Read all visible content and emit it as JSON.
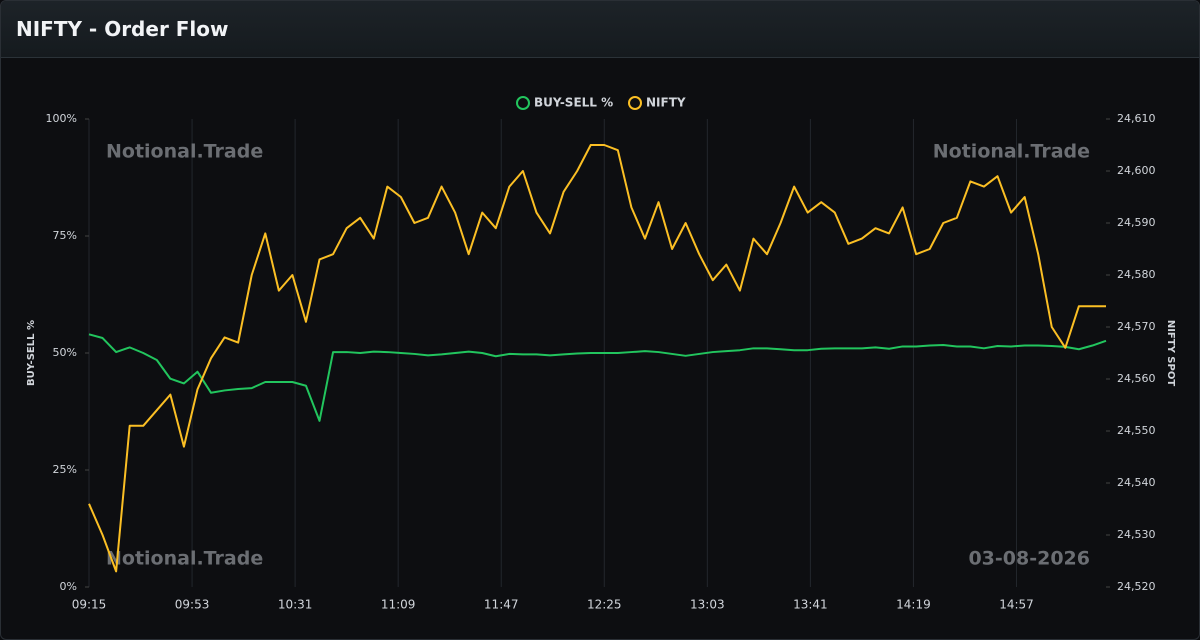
{
  "header": {
    "title": "NIFTY - Order Flow"
  },
  "chart_data": {
    "type": "line",
    "watermarks": [
      "Notional.Trade",
      "Notional.Trade",
      "Notional.Trade"
    ],
    "date_label": "03-08-2026",
    "ylabel": "BUY-SELL %",
    "y2label": "NIFTY SPOT",
    "x": [
      555,
      560,
      565,
      570,
      575,
      580,
      585,
      590,
      595,
      600,
      605,
      610,
      615,
      620,
      625,
      630,
      635,
      640,
      645,
      650,
      655,
      660,
      665,
      670,
      675,
      680,
      685,
      690,
      695,
      700,
      705,
      710,
      715,
      720,
      725,
      730,
      735,
      740,
      745,
      750,
      755,
      760,
      765,
      770,
      775,
      780,
      785,
      790,
      795,
      800,
      805,
      810,
      815,
      820,
      825,
      830,
      835,
      840,
      845,
      850,
      855,
      860,
      865,
      870,
      875,
      880,
      885,
      890,
      895,
      900,
      905,
      910,
      915,
      920,
      925,
      930
    ],
    "xlim": [
      555,
      930
    ],
    "xticks": [
      {
        "value": 555,
        "label": "09:15"
      },
      {
        "value": 593,
        "label": "09:53"
      },
      {
        "value": 631,
        "label": "10:31"
      },
      {
        "value": 669,
        "label": "11:09"
      },
      {
        "value": 707,
        "label": "11:47"
      },
      {
        "value": 745,
        "label": "12:25"
      },
      {
        "value": 783,
        "label": "13:03"
      },
      {
        "value": 821,
        "label": "13:41"
      },
      {
        "value": 859,
        "label": "14:19"
      },
      {
        "value": 897,
        "label": "14:57"
      }
    ],
    "ylim": [
      0,
      100
    ],
    "yticks": [
      {
        "value": 0,
        "label": "0%"
      },
      {
        "value": 25,
        "label": "25%"
      },
      {
        "value": 50,
        "label": "50%"
      },
      {
        "value": 75,
        "label": "75%"
      },
      {
        "value": 100,
        "label": "100%"
      }
    ],
    "y2lim": [
      24520,
      24610
    ],
    "y2ticks": [
      {
        "value": 24520,
        "label": "24,520"
      },
      {
        "value": 24530,
        "label": "24,530"
      },
      {
        "value": 24540,
        "label": "24,540"
      },
      {
        "value": 24550,
        "label": "24,550"
      },
      {
        "value": 24560,
        "label": "24,560"
      },
      {
        "value": 24570,
        "label": "24,570"
      },
      {
        "value": 24580,
        "label": "24,580"
      },
      {
        "value": 24590,
        "label": "24,590"
      },
      {
        "value": 24600,
        "label": "24,600"
      },
      {
        "value": 24610,
        "label": "24,610"
      }
    ],
    "grid": true,
    "legend": "top",
    "series": [
      {
        "name": "BUY-SELL %",
        "color": "#22c55e",
        "values": [
          54,
          53.2,
          50.2,
          51.2,
          50,
          48.5,
          44.5,
          43.5,
          46,
          41.5,
          42,
          42.3,
          42.5,
          43.8,
          43.8,
          43.8,
          43,
          35.5,
          50.2,
          50.2,
          50,
          50.3,
          50.2,
          50,
          49.8,
          49.5,
          49.7,
          50,
          50.3,
          50,
          49.3,
          49.8,
          49.7,
          49.7,
          49.5,
          49.7,
          49.9,
          50,
          50,
          50,
          50.2,
          50.4,
          50.2,
          49.8,
          49.4,
          49.8,
          50.2,
          50.4,
          50.6,
          51,
          51,
          50.8,
          50.6,
          50.6,
          50.9,
          51,
          51,
          51,
          51.2,
          50.9,
          51.4,
          51.4,
          51.6,
          51.7,
          51.4,
          51.4,
          51,
          51.5,
          51.4,
          51.6,
          51.6,
          51.5,
          51.3,
          50.8,
          51.6,
          52.6
        ]
      },
      {
        "name": "NIFTY",
        "color": "#fbbf24",
        "axis": "y2",
        "values": [
          24536,
          24530,
          24523,
          24551,
          24551,
          24554,
          24557,
          24547,
          24558,
          24564,
          24568,
          24567,
          24580,
          24588,
          24577,
          24580,
          24571,
          24583,
          24584,
          24589,
          24591,
          24587,
          24597,
          24595,
          24590,
          24591,
          24597,
          24592,
          24584,
          24592,
          24589,
          24597,
          24600,
          24592,
          24588,
          24596,
          24600,
          24605,
          24605,
          24604,
          24593,
          24587,
          24594,
          24585,
          24590,
          24584,
          24579,
          24582,
          24577,
          24587,
          24584,
          24590,
          24597,
          24592,
          24594,
          24592,
          24586,
          24587,
          24589,
          24588,
          24593,
          24584,
          24585,
          24590,
          24591,
          24598,
          24597,
          24599,
          24592,
          24595,
          24584,
          24570,
          24566,
          24574,
          24574,
          24574
        ]
      }
    ]
  }
}
